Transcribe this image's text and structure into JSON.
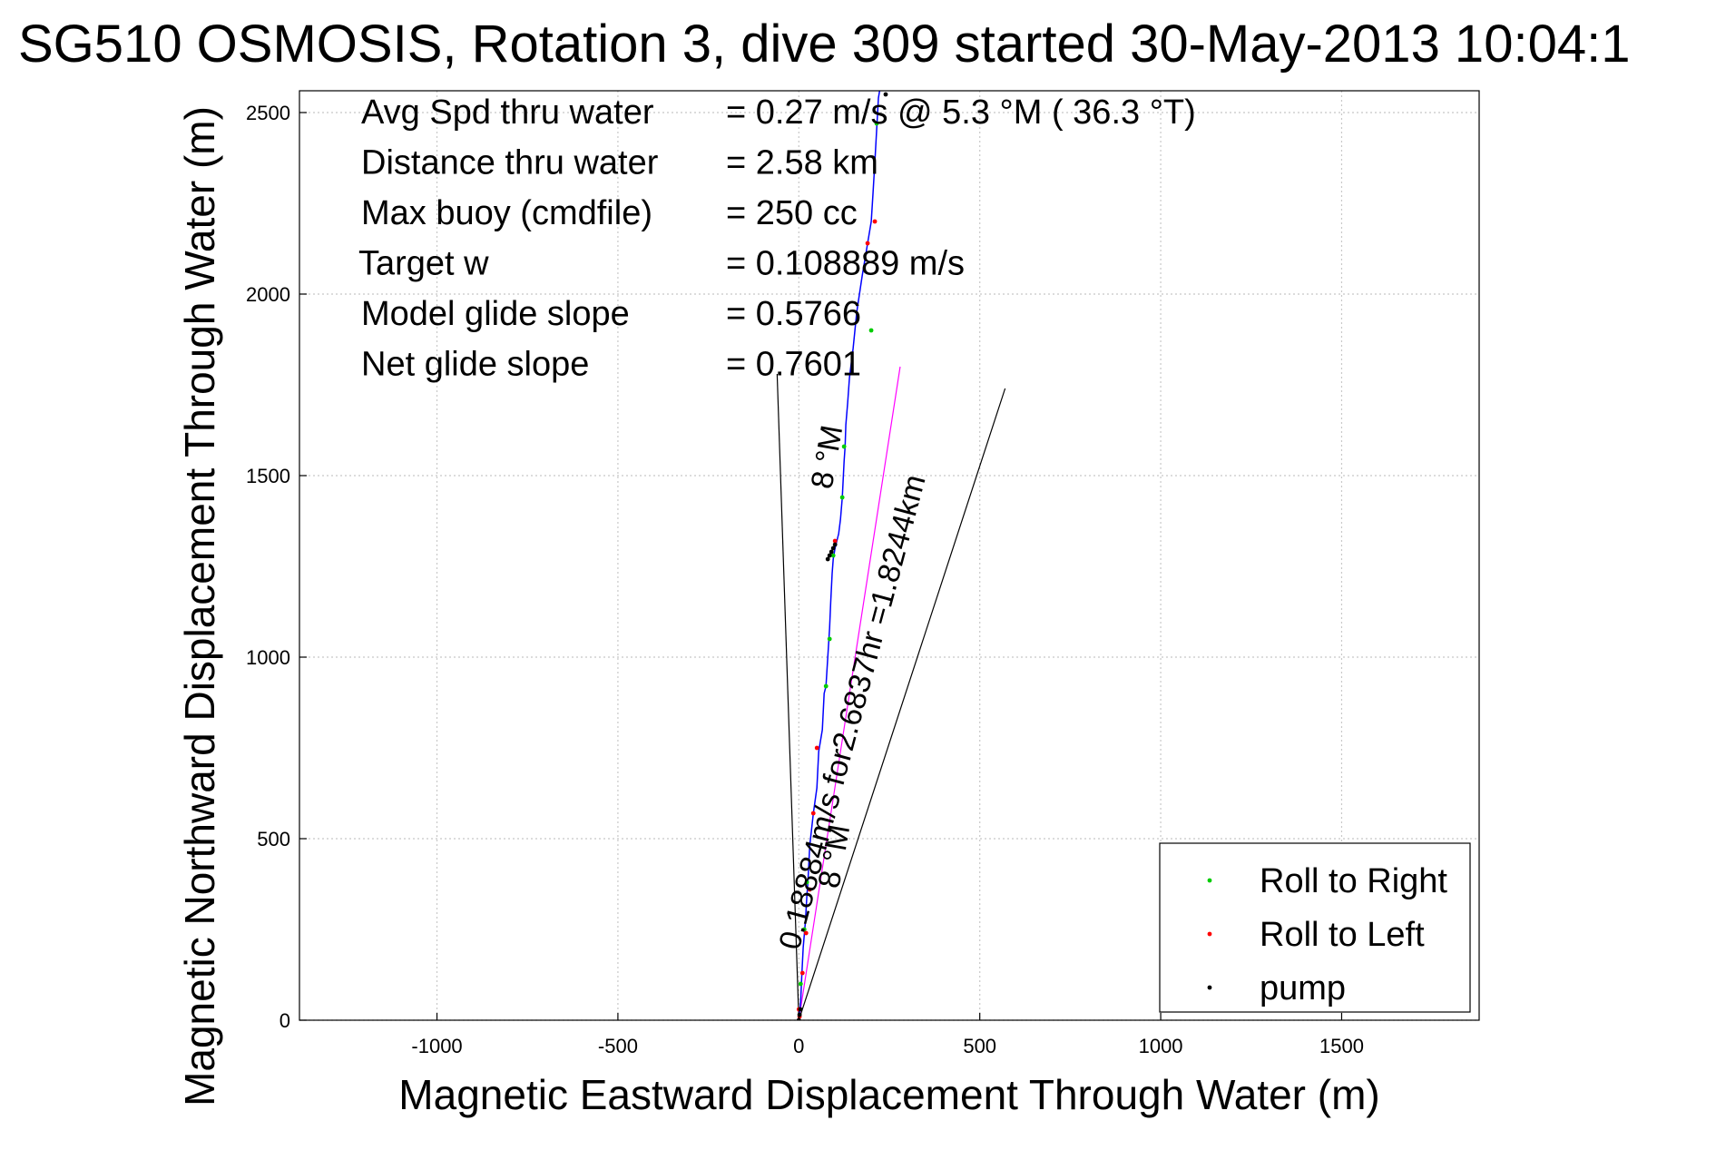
{
  "chart_data": {
    "type": "line",
    "title": "SG510 OSMOSIS, Rotation 3, dive 309 started 30-May-2013 10:04:1",
    "xlabel": "Magnetic Eastward Displacement Through Water (m)",
    "ylabel": "Magnetic Northward Displacement Through Water (m)",
    "xlim": [
      -1380,
      1880
    ],
    "ylim": [
      0,
      2560
    ],
    "xticks": [
      -1000,
      -500,
      0,
      500,
      1000,
      1500
    ],
    "yticks": [
      0,
      500,
      1000,
      1500,
      2000,
      2500
    ],
    "grid": true,
    "legend_position": "bottom-right",
    "info_lines": [
      {
        "label": "Avg Spd thru water",
        "value": "=  0.27 m/s @   5.3 °M ( 36.3 °T)"
      },
      {
        "label": "Distance thru water",
        "value": "=  2.58 km"
      },
      {
        "label": "Max buoy (cmdfile)",
        "value": "= 250 cc"
      },
      {
        "label": "Target w",
        "value": "= 0.108889 m/s"
      },
      {
        "label": "Model glide slope",
        "value": "= 0.5766"
      },
      {
        "label": "Net glide slope",
        "value": "= 0.7601"
      }
    ],
    "track": {
      "name": "track",
      "color": "#0000ff",
      "x": [
        0,
        5,
        8,
        12,
        18,
        22,
        25,
        30,
        40,
        50,
        55,
        65,
        70,
        75,
        80,
        85,
        88,
        92,
        95,
        100,
        105,
        110,
        115,
        120,
        122,
        125,
        128,
        130,
        135,
        140,
        150,
        160,
        175,
        190,
        200,
        205,
        210,
        215,
        220,
        230,
        240,
        250
      ],
      "y": [
        0,
        50,
        120,
        200,
        270,
        340,
        380,
        480,
        570,
        640,
        740,
        800,
        900,
        920,
        1000,
        1080,
        1150,
        1230,
        1270,
        1300,
        1320,
        1340,
        1380,
        1440,
        1480,
        1540,
        1580,
        1640,
        1700,
        1770,
        1850,
        1950,
        2050,
        2140,
        2200,
        2280,
        2360,
        2450,
        2540,
        2600,
        2650,
        2700
      ]
    },
    "series": [
      {
        "name": "Roll to Right",
        "color": "#00cc00",
        "x": [
          5,
          15,
          22,
          75,
          85,
          95,
          120,
          125,
          200,
          215
        ],
        "y": [
          100,
          250,
          380,
          920,
          1050,
          1280,
          1440,
          1580,
          1900,
          2470
        ]
      },
      {
        "name": "Roll to Left",
        "color": "#ff0000",
        "x": [
          2,
          0,
          10,
          20,
          30,
          40,
          50,
          100,
          190,
          210
        ],
        "y": [
          10,
          30,
          130,
          240,
          360,
          570,
          750,
          1320,
          2140,
          2200
        ]
      },
      {
        "name": "pump",
        "color": "#000000",
        "x": [
          0,
          2,
          4,
          80,
          85,
          90,
          95,
          100,
          240
        ],
        "y": [
          0,
          15,
          30,
          1270,
          1280,
          1290,
          1300,
          1310,
          2550
        ]
      }
    ],
    "reference_lines": [
      {
        "x": [
          0,
          -60
        ],
        "y": [
          0,
          1780
        ]
      },
      {
        "x": [
          0,
          570
        ],
        "y": [
          0,
          1740
        ]
      },
      {
        "x": [
          0,
          280
        ],
        "y": [
          0,
          1800
        ],
        "color": "#ff00ff"
      }
    ],
    "annotations": [
      {
        "text": "0.18884m/s for2.6837hr =1.8244km",
        "x": 0,
        "y": 190,
        "angle": -75
      },
      {
        "text": "8 °M",
        "x": 90,
        "y": 1460,
        "angle": -80
      },
      {
        "text": "8 °M",
        "x": 110,
        "y": 360,
        "angle": -80
      }
    ]
  }
}
